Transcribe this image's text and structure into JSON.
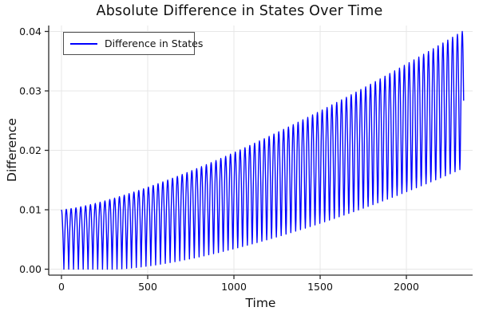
{
  "colors": {
    "background": "#ffffff",
    "line": "#0000ff",
    "axis": "#2a2a2a",
    "grid": "#e7e7e7",
    "text": "#111111",
    "legend_border": "#4d4d4d"
  },
  "chart_data": {
    "type": "line",
    "title": "Absolute Difference in States Over Time",
    "xlabel": "Time",
    "ylabel": "Difference",
    "xlim": [
      -74,
      2384
    ],
    "ylim": [
      -0.001,
      0.041
    ],
    "grid": true,
    "xticks": {
      "values": [
        0,
        500,
        1000,
        1500,
        2000
      ],
      "labels": [
        "0",
        "500",
        "1000",
        "1500",
        "2000"
      ]
    },
    "yticks": {
      "values": [
        0.0,
        0.01,
        0.02,
        0.03,
        0.04
      ],
      "labels": [
        "0.00",
        "0.01",
        "0.02",
        "0.03",
        "0.04"
      ]
    },
    "legend": {
      "position": "top-left",
      "label": "Difference in States"
    },
    "series": [
      {
        "name": "Difference in States",
        "color": "#0000ff",
        "line_width": 1.35,
        "t_start": 0,
        "t_end": 2332,
        "dt": 2,
        "oscillation_period": 56,
        "waveform": "d(t) = sqrt( (U(t)*cos(2*pi*t/P))^2 + (L(t)*sin(2*pi*t/P))^2 )",
        "upper_envelope": {
          "formula": "U(t) = 0.01*(1 + 3*(t/2324)^1.35)",
          "base": 0.01,
          "gain": 3,
          "t_ref": 2324,
          "power": 1.35
        },
        "lower_envelope": {
          "formula": "L(t) = 0.017*max(0,(t-300)/2030)^1.5",
          "scale": 0.017,
          "t_onset": 300,
          "t_span": 2030,
          "power": 1.5
        },
        "envelope_samples": {
          "t": [
            0,
            200,
            400,
            600,
            800,
            1000,
            1200,
            1400,
            1600,
            1800,
            2000,
            2200,
            2332
          ],
          "upper": [
            0.01,
            0.0111,
            0.0128,
            0.0148,
            0.0171,
            0.0196,
            0.0223,
            0.0251,
            0.0281,
            0.0312,
            0.0345,
            0.0379,
            0.0401
          ],
          "lower": [
            0.0,
            0.0,
            0.0002,
            0.001,
            0.0021,
            0.0034,
            0.005,
            0.0068,
            0.0087,
            0.0108,
            0.013,
            0.0154,
            0.017
          ]
        }
      }
    ]
  }
}
